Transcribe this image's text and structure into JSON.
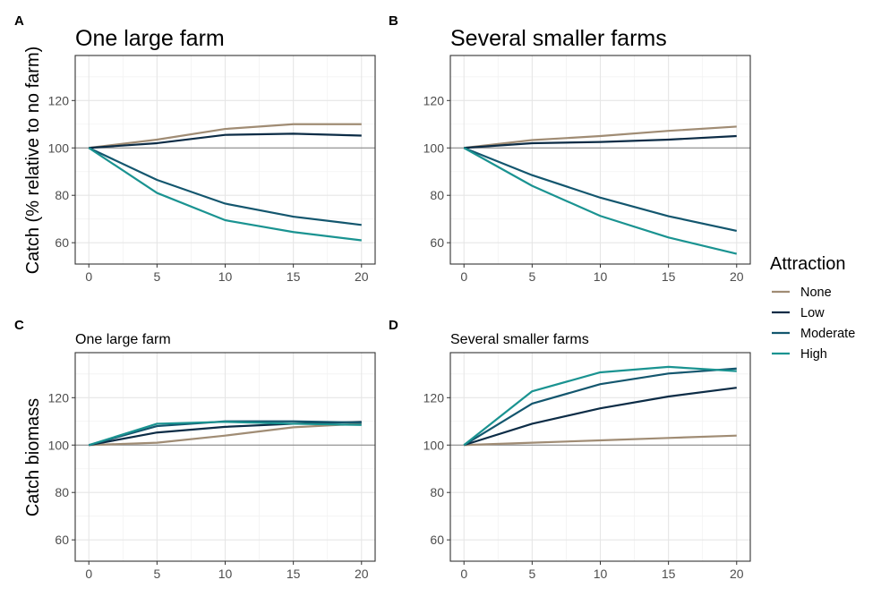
{
  "legend": {
    "title": "Attraction",
    "items": [
      {
        "label": "None",
        "color": "#a08c74"
      },
      {
        "label": "Low",
        "color": "#0c2c46"
      },
      {
        "label": "Moderate",
        "color": "#13566e"
      },
      {
        "label": "High",
        "color": "#1a9391"
      }
    ]
  },
  "ylabels": {
    "top": "Catch (% relative to no farm)",
    "bottom": "Catch biomass"
  },
  "chart_data": [
    {
      "tag": "A",
      "type": "line",
      "title": "One large farm",
      "x": [
        0,
        5,
        10,
        15,
        20
      ],
      "xticks": [
        0,
        5,
        10,
        15,
        20
      ],
      "yticks": [
        60,
        80,
        100,
        120
      ],
      "xlim": [
        -1,
        21
      ],
      "ylim": [
        51,
        139
      ],
      "reference_line": 100,
      "grid": true,
      "series": [
        {
          "name": "None",
          "values": [
            100,
            103.5,
            108,
            110,
            110
          ]
        },
        {
          "name": "Low",
          "values": [
            100,
            102,
            105.5,
            106,
            105.2
          ]
        },
        {
          "name": "Moderate",
          "values": [
            100,
            86.5,
            76.5,
            71,
            67.5
          ]
        },
        {
          "name": "High",
          "values": [
            100,
            81,
            69.5,
            64.5,
            61
          ]
        }
      ]
    },
    {
      "tag": "B",
      "type": "line",
      "title": "Several smaller farms",
      "x": [
        0,
        5,
        10,
        15,
        20
      ],
      "xticks": [
        0,
        5,
        10,
        15,
        20
      ],
      "yticks": [
        60,
        80,
        100,
        120
      ],
      "xlim": [
        -1,
        21
      ],
      "ylim": [
        51,
        139
      ],
      "reference_line": 100,
      "grid": true,
      "series": [
        {
          "name": "None",
          "values": [
            100,
            103.3,
            105,
            107.2,
            109
          ]
        },
        {
          "name": "Low",
          "values": [
            100,
            102,
            102.5,
            103.5,
            105
          ]
        },
        {
          "name": "Moderate",
          "values": [
            100,
            88.5,
            79,
            71.2,
            65
          ]
        },
        {
          "name": "High",
          "values": [
            100,
            84,
            71.3,
            62.2,
            55.3
          ]
        }
      ]
    },
    {
      "tag": "C",
      "type": "line",
      "title": "One large farm",
      "x": [
        0,
        5,
        10,
        15,
        20
      ],
      "xticks": [
        0,
        5,
        10,
        15,
        20
      ],
      "yticks": [
        60,
        80,
        100,
        120
      ],
      "xlim": [
        -1,
        21
      ],
      "ylim": [
        51,
        139
      ],
      "reference_line": 100,
      "grid": true,
      "series": [
        {
          "name": "None",
          "values": [
            100,
            101,
            104,
            107.5,
            109
          ]
        },
        {
          "name": "Low",
          "values": [
            100,
            105.3,
            107.7,
            109,
            109.8
          ]
        },
        {
          "name": "Moderate",
          "values": [
            100,
            108,
            110,
            110,
            109.5
          ]
        },
        {
          "name": "High",
          "values": [
            100,
            109,
            109.8,
            109,
            108.5
          ]
        }
      ]
    },
    {
      "tag": "D",
      "type": "line",
      "title": "Several smaller farms",
      "x": [
        0,
        5,
        10,
        15,
        20
      ],
      "xticks": [
        0,
        5,
        10,
        15,
        20
      ],
      "yticks": [
        60,
        80,
        100,
        120
      ],
      "xlim": [
        -1,
        21
      ],
      "ylim": [
        51,
        139
      ],
      "reference_line": 100,
      "grid": true,
      "series": [
        {
          "name": "None",
          "values": [
            100,
            101,
            102,
            103,
            104
          ]
        },
        {
          "name": "Low",
          "values": [
            100,
            109,
            115.5,
            120.5,
            124.2
          ]
        },
        {
          "name": "Moderate",
          "values": [
            100,
            117.5,
            125.7,
            130.2,
            132.3
          ]
        },
        {
          "name": "High",
          "values": [
            100,
            122.7,
            130.7,
            133,
            131.2
          ]
        }
      ]
    }
  ]
}
